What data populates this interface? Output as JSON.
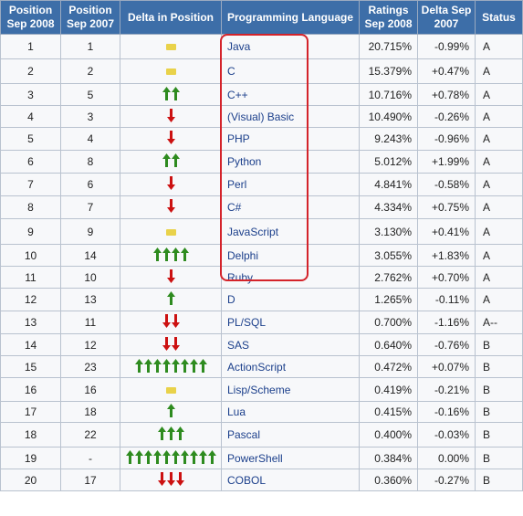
{
  "headers": {
    "pos2008": "Position Sep 2008",
    "pos2007": "Position Sep 2007",
    "delta_pos": "Delta in Position",
    "language": "Programming Language",
    "ratings": "Ratings Sep 2008",
    "delta": "Delta Sep 2007",
    "status": "Status"
  },
  "colors": {
    "up": "#2e8b1f",
    "down": "#cc1111",
    "same": "#e9d24a",
    "header_bg": "#3d6ea8",
    "highlight": "#d4232a"
  },
  "rows": [
    {
      "pos2008": "1",
      "pos2007": "1",
      "language": "Java",
      "ratings": "20.715%",
      "delta": "-0.99%",
      "status": "A",
      "trend": "same",
      "arrows": 1
    },
    {
      "pos2008": "2",
      "pos2007": "2",
      "language": "C",
      "ratings": "15.379%",
      "delta": "+0.47%",
      "status": "A",
      "trend": "same",
      "arrows": 1
    },
    {
      "pos2008": "3",
      "pos2007": "5",
      "language": "C++",
      "ratings": "10.716%",
      "delta": "+0.78%",
      "status": "A",
      "trend": "up",
      "arrows": 2
    },
    {
      "pos2008": "4",
      "pos2007": "3",
      "language": "(Visual) Basic",
      "ratings": "10.490%",
      "delta": "-0.26%",
      "status": "A",
      "trend": "down",
      "arrows": 1
    },
    {
      "pos2008": "5",
      "pos2007": "4",
      "language": "PHP",
      "ratings": "9.243%",
      "delta": "-0.96%",
      "status": "A",
      "trend": "down",
      "arrows": 1
    },
    {
      "pos2008": "6",
      "pos2007": "8",
      "language": "Python",
      "ratings": "5.012%",
      "delta": "+1.99%",
      "status": "A",
      "trend": "up",
      "arrows": 2
    },
    {
      "pos2008": "7",
      "pos2007": "6",
      "language": "Perl",
      "ratings": "4.841%",
      "delta": "-0.58%",
      "status": "A",
      "trend": "down",
      "arrows": 1
    },
    {
      "pos2008": "8",
      "pos2007": "7",
      "language": "C#",
      "ratings": "4.334%",
      "delta": "+0.75%",
      "status": "A",
      "trend": "down",
      "arrows": 1
    },
    {
      "pos2008": "9",
      "pos2007": "9",
      "language": "JavaScript",
      "ratings": "3.130%",
      "delta": "+0.41%",
      "status": "A",
      "trend": "same",
      "arrows": 1
    },
    {
      "pos2008": "10",
      "pos2007": "14",
      "language": "Delphi",
      "ratings": "3.055%",
      "delta": "+1.83%",
      "status": "A",
      "trend": "up",
      "arrows": 4
    },
    {
      "pos2008": "11",
      "pos2007": "10",
      "language": "Ruby",
      "ratings": "2.762%",
      "delta": "+0.70%",
      "status": "A",
      "trend": "down",
      "arrows": 1
    },
    {
      "pos2008": "12",
      "pos2007": "13",
      "language": "D",
      "ratings": "1.265%",
      "delta": "-0.11%",
      "status": "A",
      "trend": "up",
      "arrows": 1
    },
    {
      "pos2008": "13",
      "pos2007": "11",
      "language": "PL/SQL",
      "ratings": "0.700%",
      "delta": "-1.16%",
      "status": "A--",
      "trend": "down",
      "arrows": 2
    },
    {
      "pos2008": "14",
      "pos2007": "12",
      "language": "SAS",
      "ratings": "0.640%",
      "delta": "-0.76%",
      "status": "B",
      "trend": "down",
      "arrows": 2
    },
    {
      "pos2008": "15",
      "pos2007": "23",
      "language": "ActionScript",
      "ratings": "0.472%",
      "delta": "+0.07%",
      "status": "B",
      "trend": "up",
      "arrows": 8
    },
    {
      "pos2008": "16",
      "pos2007": "16",
      "language": "Lisp/Scheme",
      "ratings": "0.419%",
      "delta": "-0.21%",
      "status": "B",
      "trend": "same",
      "arrows": 1
    },
    {
      "pos2008": "17",
      "pos2007": "18",
      "language": "Lua",
      "ratings": "0.415%",
      "delta": "-0.16%",
      "status": "B",
      "trend": "up",
      "arrows": 1
    },
    {
      "pos2008": "18",
      "pos2007": "22",
      "language": "Pascal",
      "ratings": "0.400%",
      "delta": "-0.03%",
      "status": "B",
      "trend": "up",
      "arrows": 3
    },
    {
      "pos2008": "19",
      "pos2007": "-",
      "language": "PowerShell",
      "ratings": "0.384%",
      "delta": "0.00%",
      "status": "B",
      "trend": "up",
      "arrows": 10
    },
    {
      "pos2008": "20",
      "pos2007": "17",
      "language": "COBOL",
      "ratings": "0.360%",
      "delta": "-0.27%",
      "status": "B",
      "trend": "down",
      "arrows": 3
    }
  ]
}
